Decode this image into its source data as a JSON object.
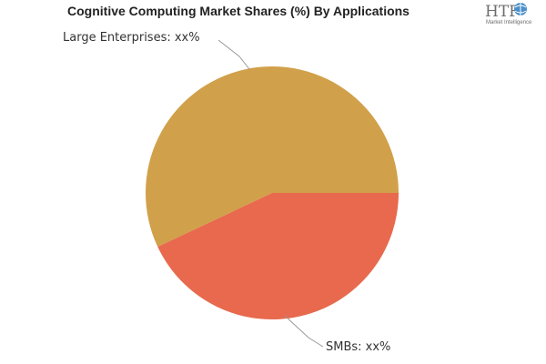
{
  "chart_data": {
    "type": "pie",
    "title": "Cognitive Computing Market Shares (%) By Applications",
    "slices": [
      {
        "name": "Large Enterprises",
        "label": "Large Enterprises: xx%",
        "value": 57,
        "color": "#d1a04a"
      },
      {
        "name": "SMBs",
        "label": "SMBs: xx%",
        "value": 43,
        "color": "#e8694d"
      }
    ],
    "start_angle_deg": 0,
    "direction": "clockwise"
  },
  "logo": {
    "text": "HTF",
    "subtext": "Market Intelligence"
  }
}
